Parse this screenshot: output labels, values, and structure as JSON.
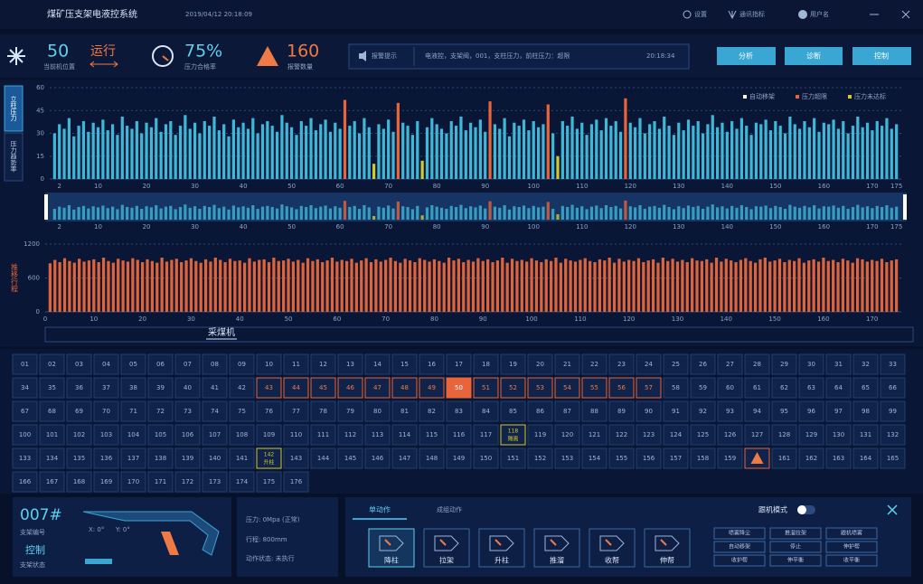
{
  "header": {
    "title": "煤矿压支架电液控系统",
    "datetime": "2019/04/12 20:18:09",
    "menu": [
      "设置",
      "通讯指标",
      "用户名"
    ]
  },
  "status": {
    "position_value": "50",
    "position_label": "当前机位置",
    "run_state": "运行",
    "rate_value": "75%",
    "rate_label": "压力合格率",
    "alarm_value": "160",
    "alarm_label": "报警数量"
  },
  "alarm_bar": {
    "label": "报警提示",
    "message": "电液控，支架阀，001，支柱压力，前柱压力：超限",
    "time": "20:18:34"
  },
  "nav_buttons": [
    "分析",
    "诊断",
    "控制"
  ],
  "side_tabs": [
    "立柱压力",
    "压力趋势率"
  ],
  "chart_data": [
    {
      "type": "bar",
      "color": "#3fb8d8",
      "xlim": [
        0,
        176
      ],
      "xticks": [
        2,
        10,
        20,
        30,
        40,
        50,
        60,
        70,
        80,
        90,
        100,
        110,
        120,
        130,
        140,
        150,
        160,
        170,
        175
      ],
      "ylim": [
        0,
        60
      ],
      "yticks": [
        0,
        15,
        30,
        45,
        60
      ],
      "grid": true,
      "legend": "top-right",
      "navigator": true,
      "legend_items": [
        {
          "name": "自动移架",
          "color": "#ffffff"
        },
        {
          "name": "压力超限",
          "color": "#e8643a",
          "x": [
            61,
            72,
            91,
            103,
            119
          ]
        },
        {
          "name": "压力未达标",
          "color": "#d4c830",
          "x": [
            67,
            77,
            105
          ]
        }
      ],
      "x": [
        1,
        2,
        3,
        4,
        5,
        6,
        7,
        8,
        9,
        10,
        11,
        12,
        13,
        14,
        15,
        16,
        17,
        18,
        19,
        20,
        21,
        22,
        23,
        24,
        25,
        26,
        27,
        28,
        29,
        30,
        31,
        32,
        33,
        34,
        35,
        36,
        37,
        38,
        39,
        40,
        41,
        42,
        43,
        44,
        45,
        46,
        47,
        48,
        49,
        50,
        51,
        52,
        53,
        54,
        55,
        56,
        57,
        58,
        59,
        60,
        61,
        62,
        63,
        64,
        65,
        66,
        67,
        68,
        69,
        70,
        71,
        72,
        73,
        74,
        75,
        76,
        77,
        78,
        79,
        80,
        81,
        82,
        83,
        84,
        85,
        86,
        87,
        88,
        89,
        90,
        91,
        92,
        93,
        94,
        95,
        96,
        97,
        98,
        99,
        100,
        101,
        102,
        103,
        104,
        105,
        106,
        107,
        108,
        109,
        110,
        111,
        112,
        113,
        114,
        115,
        116,
        117,
        118,
        119,
        120,
        121,
        122,
        123,
        124,
        125,
        126,
        127,
        128,
        129,
        130,
        131,
        132,
        133,
        134,
        135,
        136,
        137,
        138,
        139,
        140,
        141,
        142,
        143,
        144,
        145,
        146,
        147,
        148,
        149,
        150,
        151,
        152,
        153,
        154,
        155,
        156,
        157,
        158,
        159,
        160,
        161,
        162,
        163,
        164,
        165,
        166,
        167,
        168,
        169,
        170,
        171,
        172,
        173,
        174,
        175
      ],
      "values": [
        30,
        36,
        33,
        40,
        28,
        35,
        38,
        31,
        37,
        34,
        39,
        32,
        36,
        29,
        41,
        35,
        33,
        38,
        30,
        37,
        34,
        40,
        31,
        36,
        38,
        29,
        35,
        42,
        33,
        37,
        30,
        38,
        35,
        41,
        32,
        36,
        28,
        39,
        34,
        37,
        33,
        40,
        30,
        36,
        38,
        35,
        31,
        42,
        37,
        34,
        29,
        38,
        35,
        40,
        32,
        36,
        39,
        31,
        37,
        33,
        52,
        35,
        38,
        30,
        40,
        34,
        10,
        36,
        33,
        39,
        31,
        50,
        37,
        35,
        29,
        38,
        12,
        34,
        40,
        36,
        33,
        30,
        38,
        35,
        41,
        32,
        37,
        34,
        39,
        31,
        51,
        36,
        33,
        40,
        28,
        37,
        35,
        39,
        32,
        38,
        34,
        36,
        49,
        30,
        15,
        38,
        35,
        41,
        33,
        37,
        29,
        36,
        39,
        32,
        40,
        35,
        38,
        31,
        53,
        37,
        34,
        40,
        30,
        36,
        38,
        33,
        41,
        35,
        29,
        37,
        32,
        39,
        35,
        38,
        30,
        36,
        42,
        34,
        37,
        31,
        38,
        33,
        40,
        35,
        29,
        37,
        36,
        39,
        32,
        38,
        35,
        30,
        41,
        36,
        33,
        38,
        34,
        40,
        31,
        37,
        36,
        39,
        33,
        38,
        30,
        35,
        41,
        34,
        37,
        32,
        38,
        35,
        40,
        33,
        36
      ]
    },
    {
      "type": "bar",
      "color": "#e0643a",
      "ylabel": "推移行程",
      "xlim": [
        0,
        176
      ],
      "xticks": [
        0,
        10,
        20,
        30,
        40,
        50,
        60,
        70,
        80,
        90,
        100,
        110,
        120,
        130,
        140,
        150,
        160,
        170
      ],
      "ylim": [
        0,
        1200
      ],
      "yticks": [
        0,
        600,
        1200
      ],
      "grid": true,
      "x": [
        1,
        2,
        3,
        4,
        5,
        6,
        7,
        8,
        9,
        10,
        11,
        12,
        13,
        14,
        15,
        16,
        17,
        18,
        19,
        20,
        21,
        22,
        23,
        24,
        25,
        26,
        27,
        28,
        29,
        30,
        31,
        32,
        33,
        34,
        35,
        36,
        37,
        38,
        39,
        40,
        41,
        42,
        43,
        44,
        45,
        46,
        47,
        48,
        49,
        50,
        51,
        52,
        53,
        54,
        55,
        56,
        57,
        58,
        59,
        60,
        61,
        62,
        63,
        64,
        65,
        66,
        67,
        68,
        69,
        70,
        71,
        72,
        73,
        74,
        75,
        76,
        77,
        78,
        79,
        80,
        81,
        82,
        83,
        84,
        85,
        86,
        87,
        88,
        89,
        90,
        91,
        92,
        93,
        94,
        95,
        96,
        97,
        98,
        99,
        100,
        101,
        102,
        103,
        104,
        105,
        106,
        107,
        108,
        109,
        110,
        111,
        112,
        113,
        114,
        115,
        116,
        117,
        118,
        119,
        120,
        121,
        122,
        123,
        124,
        125,
        126,
        127,
        128,
        129,
        130,
        131,
        132,
        133,
        134,
        135,
        136,
        137,
        138,
        139,
        140,
        141,
        142,
        143,
        144,
        145,
        146,
        147,
        148,
        149,
        150,
        151,
        152,
        153,
        154,
        155,
        156,
        157,
        158,
        159,
        160,
        161,
        162,
        163,
        164,
        165,
        166,
        167,
        168,
        169,
        170,
        171,
        172,
        173,
        174,
        175
      ],
      "values": [
        860,
        920,
        880,
        950,
        900,
        870,
        940,
        890,
        910,
        930,
        880,
        960,
        900,
        870,
        940,
        910,
        890,
        950,
        920,
        880,
        930,
        900,
        870,
        960,
        890,
        920,
        940,
        880,
        910,
        950,
        900,
        870,
        930,
        890,
        960,
        920,
        880,
        940,
        900,
        910,
        870,
        950,
        890,
        920,
        930,
        880,
        960,
        900,
        910,
        940,
        890,
        920,
        870,
        950,
        900,
        930,
        880,
        910,
        960,
        890,
        920,
        900,
        940,
        870,
        910,
        950,
        880,
        930,
        890,
        920,
        960,
        900,
        870,
        940,
        910,
        880,
        950,
        920,
        890,
        930,
        900,
        870,
        960,
        910,
        940,
        880,
        920,
        890,
        950,
        900,
        930,
        880,
        910,
        960,
        870,
        940,
        900,
        920,
        890,
        950,
        910,
        880,
        930,
        900,
        960,
        870,
        940,
        910,
        890,
        920,
        950,
        900,
        880,
        930,
        910,
        960,
        870,
        940,
        890,
        920,
        900,
        950,
        880,
        910,
        930,
        870,
        960,
        900,
        940,
        890,
        920,
        880,
        950,
        910,
        900,
        930,
        870,
        960,
        890,
        940,
        910,
        880,
        920,
        950,
        900,
        870,
        930,
        960,
        890,
        910,
        940,
        880,
        920,
        900,
        950,
        870,
        910,
        930,
        890,
        960,
        900,
        920,
        880,
        940,
        910,
        870,
        950,
        930,
        890,
        920,
        900,
        940,
        880,
        910,
        930
      ]
    }
  ],
  "shearer_label": "采煤机",
  "support_grid": {
    "cells": [
      "01",
      "02",
      "03",
      "04",
      "05",
      "06",
      "07",
      "08",
      "09",
      "10",
      "11",
      "12",
      "13",
      "14",
      "15",
      "16",
      "17",
      "18",
      "19",
      "20",
      "21",
      "22",
      "23",
      "24",
      "25",
      "26",
      "27",
      "28",
      "29",
      "30",
      "31",
      "32",
      "33",
      "34",
      "35",
      "36",
      "37",
      "38",
      "39",
      "40",
      "41",
      "42",
      {
        "label": "43",
        "state": "group"
      },
      {
        "label": "44",
        "state": "group"
      },
      {
        "label": "45",
        "state": "group"
      },
      {
        "label": "46",
        "state": "group"
      },
      {
        "label": "47",
        "state": "group"
      },
      {
        "label": "48",
        "state": "group"
      },
      {
        "label": "49",
        "state": "group"
      },
      {
        "label": "50",
        "state": "current"
      },
      {
        "label": "51",
        "state": "group"
      },
      {
        "label": "52",
        "state": "group"
      },
      {
        "label": "53",
        "state": "group"
      },
      {
        "label": "54",
        "state": "group"
      },
      {
        "label": "55",
        "state": "group"
      },
      {
        "label": "56",
        "state": "group"
      },
      {
        "label": "57",
        "state": "group"
      },
      "58",
      "59",
      "60",
      "61",
      "62",
      "63",
      "64",
      "65",
      "66",
      "67",
      "68",
      "69",
      "70",
      "71",
      "72",
      "73",
      "74",
      "75",
      "76",
      "77",
      "78",
      "79",
      "80",
      "81",
      "82",
      "83",
      "84",
      "85",
      "86",
      "87",
      "88",
      "89",
      "90",
      "91",
      "92",
      "93",
      "94",
      "95",
      "96",
      "97",
      "98",
      "99",
      "100",
      "101",
      "102",
      "103",
      "104",
      "105",
      "106",
      "107",
      "108",
      "109",
      "110",
      "111",
      "112",
      "113",
      "114",
      "115",
      "116",
      "117",
      {
        "label": "118",
        "note": "隔离",
        "state": "isolated"
      },
      "119",
      "120",
      "121",
      "122",
      "123",
      "124",
      "125",
      "126",
      "127",
      "128",
      "129",
      "130",
      "131",
      "132",
      "133",
      "134",
      "135",
      "136",
      "137",
      "138",
      "139",
      "140",
      "141",
      {
        "label": "142",
        "note": "升柱",
        "state": "lifting"
      },
      "143",
      "144",
      "145",
      "146",
      "147",
      "148",
      "149",
      "150",
      "151",
      "152",
      "153",
      "154",
      "155",
      "156",
      "157",
      "158",
      "159",
      {
        "state": "alarm"
      },
      "161",
      "162",
      "163",
      "164",
      "165",
      "166",
      "167",
      "168",
      "169",
      "170",
      "171",
      "172",
      "173",
      "174",
      "175",
      "176"
    ]
  },
  "detail": {
    "support_no": "007#",
    "support_no_label": "支架编号",
    "support_state": "控制",
    "support_state_label": "支架状态",
    "angle_x": "X: 0°",
    "angle_y": "Y: 0°",
    "pressure": "压力: 0Mpa (正常)",
    "stroke": "行程: 800mm",
    "action_state": "动作状态: 未执行"
  },
  "control": {
    "tabs": [
      "单动作",
      "成组动作"
    ],
    "follow_mode": "跟机模式",
    "actions": [
      "降柱",
      "拉架",
      "升柱",
      "推溜",
      "收帮",
      "伸帮"
    ],
    "group_buttons": [
      "喷雾降尘",
      "推溜拉架",
      "跟机喷雾",
      "自动移架",
      "停止",
      "伸护帮",
      "收护帮",
      "伸平衡",
      "收平衡"
    ]
  }
}
